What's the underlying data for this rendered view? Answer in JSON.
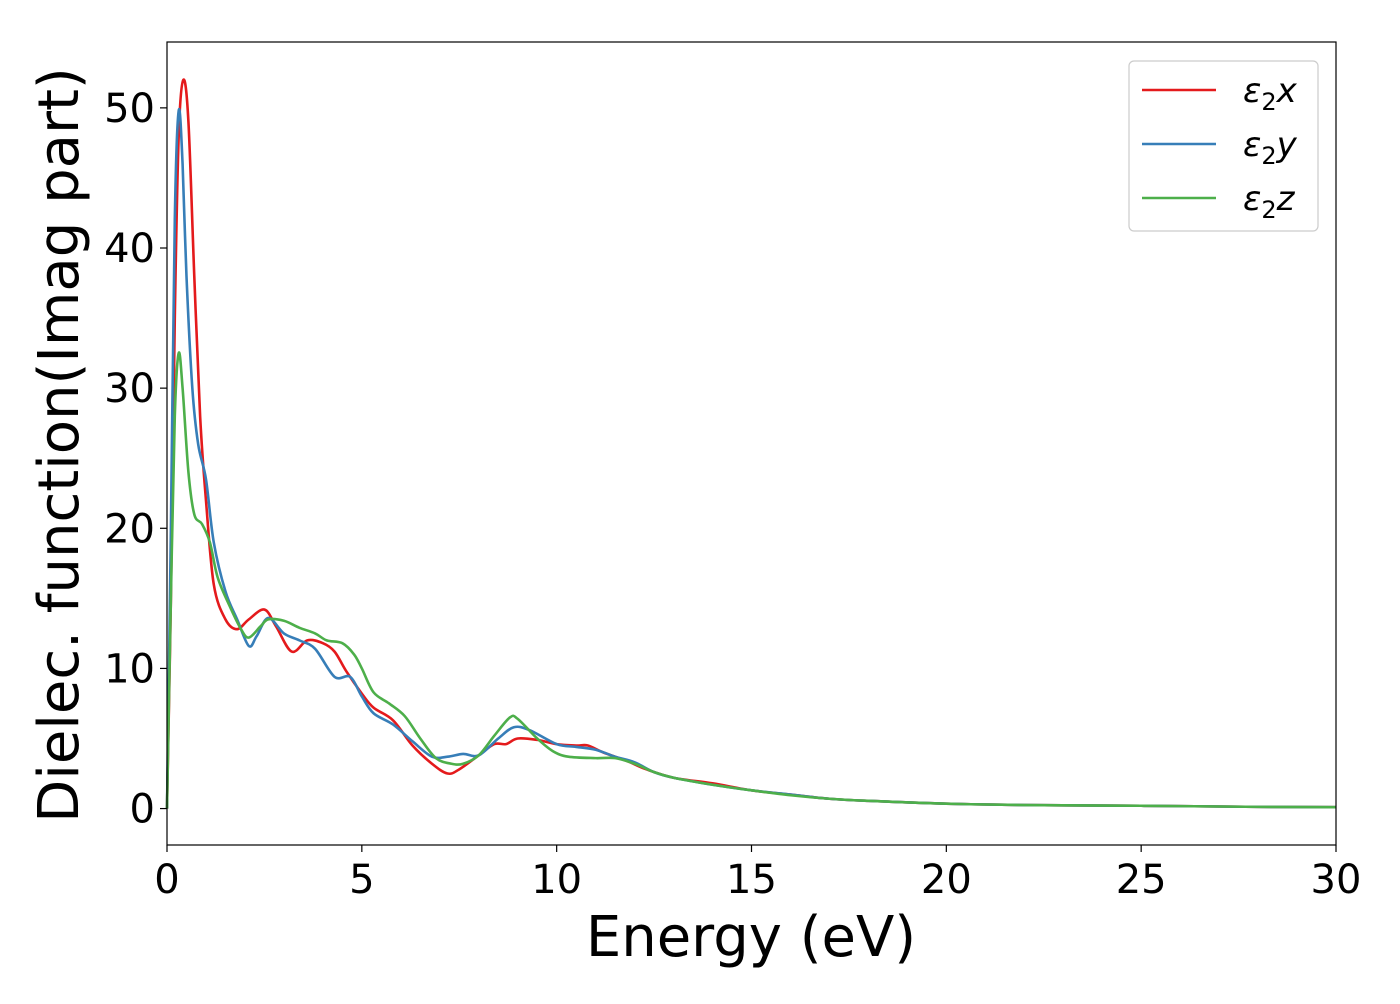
{
  "chart_data": {
    "type": "line",
    "title": "",
    "xlabel": "Energy (eV)",
    "ylabel": "Dielec. function(Imag part)",
    "xlim": [
      0,
      30
    ],
    "ylim": [
      -2.6,
      54.7
    ],
    "xticks": [
      "0",
      "5",
      "10",
      "15",
      "20",
      "25",
      "30"
    ],
    "yticks": [
      "0",
      "10",
      "20",
      "30",
      "40",
      "50"
    ],
    "grid": false,
    "legend_position": "top-right",
    "series": [
      {
        "name": "ε2x",
        "label_main": "ε",
        "label_sub": "2",
        "label_axis": "x",
        "color": "#e41a1c",
        "points": [
          [
            0,
            0
          ],
          [
            0.1,
            15
          ],
          [
            0.2,
            35
          ],
          [
            0.3,
            48
          ],
          [
            0.42,
            52
          ],
          [
            0.55,
            49
          ],
          [
            0.7,
            38
          ],
          [
            0.85,
            28
          ],
          [
            1.0,
            22
          ],
          [
            1.2,
            16
          ],
          [
            1.5,
            13.5
          ],
          [
            1.8,
            12.8
          ],
          [
            2.1,
            13.5
          ],
          [
            2.5,
            14.2
          ],
          [
            2.8,
            13
          ],
          [
            3.2,
            11.2
          ],
          [
            3.6,
            12
          ],
          [
            4.0,
            11.8
          ],
          [
            4.3,
            11.2
          ],
          [
            4.6,
            9.8
          ],
          [
            5.0,
            8.2
          ],
          [
            5.3,
            7.2
          ],
          [
            5.8,
            6.3
          ],
          [
            6.3,
            4.5
          ],
          [
            6.8,
            3.2
          ],
          [
            7.2,
            2.5
          ],
          [
            7.5,
            2.8
          ],
          [
            8.0,
            3.8
          ],
          [
            8.4,
            4.6
          ],
          [
            8.7,
            4.6
          ],
          [
            9.0,
            5.0
          ],
          [
            9.5,
            4.9
          ],
          [
            10,
            4.6
          ],
          [
            10.5,
            4.5
          ],
          [
            10.8,
            4.5
          ],
          [
            11.2,
            4.0
          ],
          [
            11.8,
            3.4
          ],
          [
            12.3,
            2.8
          ],
          [
            13,
            2.2
          ],
          [
            14,
            1.8
          ],
          [
            15,
            1.3
          ],
          [
            16,
            1.0
          ],
          [
            17,
            0.7
          ],
          [
            18,
            0.55
          ],
          [
            20,
            0.35
          ],
          [
            22,
            0.25
          ],
          [
            25,
            0.2
          ],
          [
            28,
            0.12
          ],
          [
            30,
            0.1
          ]
        ]
      },
      {
        "name": "ε2y",
        "label_main": "ε",
        "label_sub": "2",
        "label_axis": "y",
        "color": "#377eb8",
        "points": [
          [
            0,
            0
          ],
          [
            0.1,
            20
          ],
          [
            0.2,
            42
          ],
          [
            0.3,
            49.8
          ],
          [
            0.4,
            46
          ],
          [
            0.5,
            38
          ],
          [
            0.65,
            30
          ],
          [
            0.8,
            26
          ],
          [
            1.0,
            23.5
          ],
          [
            1.2,
            19
          ],
          [
            1.5,
            15.5
          ],
          [
            1.8,
            13.5
          ],
          [
            2.1,
            11.6
          ],
          [
            2.3,
            12.3
          ],
          [
            2.6,
            13.6
          ],
          [
            3.0,
            12.5
          ],
          [
            3.4,
            12
          ],
          [
            3.8,
            11.4
          ],
          [
            4.3,
            9.4
          ],
          [
            4.7,
            9.4
          ],
          [
            5.0,
            8
          ],
          [
            5.3,
            6.8
          ],
          [
            5.8,
            6
          ],
          [
            6.3,
            4.8
          ],
          [
            6.8,
            3.7
          ],
          [
            7.2,
            3.7
          ],
          [
            7.6,
            3.9
          ],
          [
            8.0,
            3.8
          ],
          [
            8.5,
            5.0
          ],
          [
            8.9,
            5.8
          ],
          [
            9.3,
            5.6
          ],
          [
            10,
            4.6
          ],
          [
            10.5,
            4.4
          ],
          [
            11,
            4.2
          ],
          [
            11.5,
            3.7
          ],
          [
            12,
            3.3
          ],
          [
            12.5,
            2.6
          ],
          [
            13,
            2.2
          ],
          [
            14,
            1.7
          ],
          [
            15,
            1.3
          ],
          [
            16,
            1.0
          ],
          [
            17,
            0.7
          ],
          [
            18,
            0.55
          ],
          [
            20,
            0.35
          ],
          [
            22,
            0.25
          ],
          [
            25,
            0.2
          ],
          [
            28,
            0.12
          ],
          [
            30,
            0.1
          ]
        ]
      },
      {
        "name": "ε2z",
        "label_main": "ε",
        "label_sub": "2",
        "label_axis": "z",
        "color": "#4daf4a",
        "points": [
          [
            0,
            0
          ],
          [
            0.1,
            15
          ],
          [
            0.2,
            28
          ],
          [
            0.3,
            32.5
          ],
          [
            0.4,
            30
          ],
          [
            0.55,
            24
          ],
          [
            0.7,
            21
          ],
          [
            0.9,
            20.3
          ],
          [
            1.1,
            19
          ],
          [
            1.3,
            16.5
          ],
          [
            1.6,
            14.5
          ],
          [
            1.9,
            12.8
          ],
          [
            2.1,
            12.2
          ],
          [
            2.4,
            13
          ],
          [
            2.6,
            13.5
          ],
          [
            3.0,
            13.4
          ],
          [
            3.4,
            12.9
          ],
          [
            3.8,
            12.5
          ],
          [
            4.1,
            12
          ],
          [
            4.5,
            11.8
          ],
          [
            4.8,
            11
          ],
          [
            5.0,
            10
          ],
          [
            5.3,
            8.3
          ],
          [
            5.7,
            7.5
          ],
          [
            6.1,
            6.6
          ],
          [
            6.5,
            5
          ],
          [
            6.9,
            3.6
          ],
          [
            7.3,
            3.2
          ],
          [
            7.6,
            3.2
          ],
          [
            8.0,
            3.8
          ],
          [
            8.4,
            5.2
          ],
          [
            8.8,
            6.5
          ],
          [
            9.0,
            6.4
          ],
          [
            9.5,
            5
          ],
          [
            9.9,
            4.1
          ],
          [
            10.3,
            3.7
          ],
          [
            11,
            3.6
          ],
          [
            11.5,
            3.6
          ],
          [
            12,
            3.2
          ],
          [
            12.5,
            2.6
          ],
          [
            13,
            2.2
          ],
          [
            14,
            1.7
          ],
          [
            15,
            1.3
          ],
          [
            16,
            0.95
          ],
          [
            17,
            0.7
          ],
          [
            18,
            0.55
          ],
          [
            20,
            0.35
          ],
          [
            22,
            0.25
          ],
          [
            25,
            0.2
          ],
          [
            28,
            0.12
          ],
          [
            30,
            0.1
          ]
        ]
      }
    ]
  }
}
